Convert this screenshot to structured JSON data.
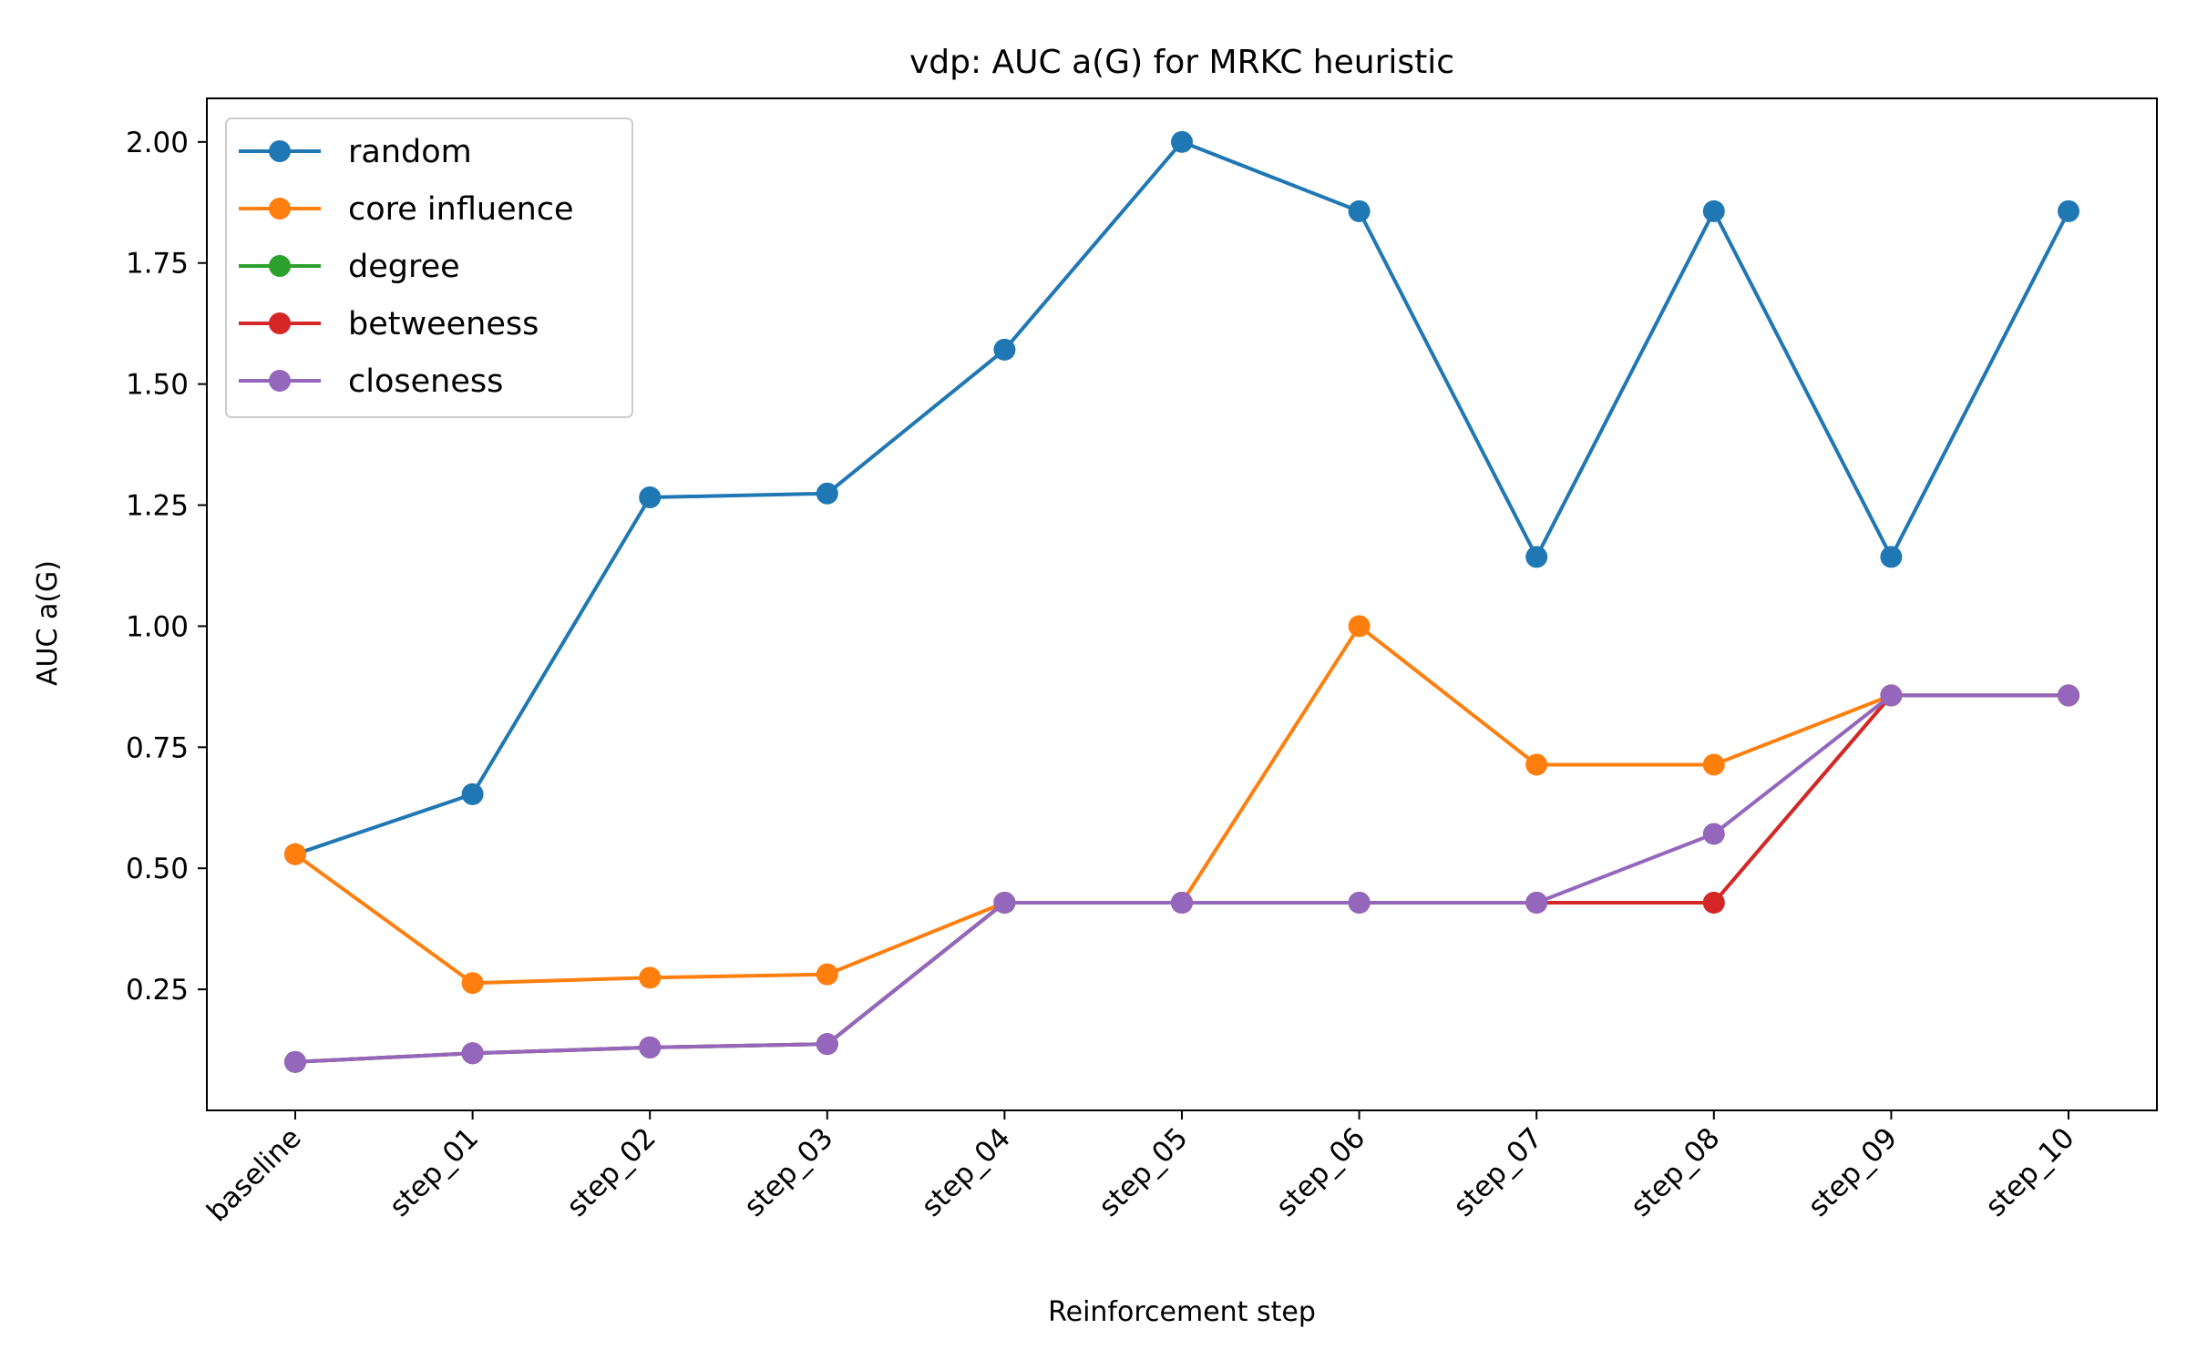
{
  "chart_data": {
    "type": "line",
    "title": "vdp: AUC a(G) for MRKC heuristic",
    "xlabel": "Reinforcement step",
    "ylabel": "AUC a(G)",
    "categories": [
      "baseline",
      "step_01",
      "step_02",
      "step_03",
      "step_04",
      "step_05",
      "step_06",
      "step_07",
      "step_08",
      "step_09",
      "step_10"
    ],
    "ylim": [
      0.0,
      2.09
    ],
    "yticks": [
      "0.25",
      "0.50",
      "0.75",
      "1.00",
      "1.25",
      "1.50",
      "1.75",
      "2.00"
    ],
    "grid": false,
    "legend_position": "top-left",
    "series": [
      {
        "name": "random",
        "color": "#1f77b4",
        "values": [
          0.529,
          0.653,
          1.266,
          1.274,
          1.571,
          2.0,
          1.857,
          1.143,
          1.857,
          1.143,
          1.857
        ]
      },
      {
        "name": "core influence",
        "color": "#ff7f0e",
        "values": [
          0.529,
          0.263,
          0.274,
          0.281,
          0.429,
          0.429,
          1.0,
          0.714,
          0.714,
          0.857,
          0.857
        ]
      },
      {
        "name": "degree",
        "color": "#2ca02c",
        "values": [
          0.1,
          0.118,
          0.13,
          0.137,
          0.429,
          0.429,
          0.429,
          0.429,
          0.429,
          0.857,
          0.857
        ]
      },
      {
        "name": "betweeness",
        "color": "#d62728",
        "values": [
          0.1,
          0.118,
          0.13,
          0.137,
          0.429,
          0.429,
          0.429,
          0.429,
          0.429,
          0.857,
          0.857
        ]
      },
      {
        "name": "closeness",
        "color": "#9467bd",
        "values": [
          0.1,
          0.118,
          0.13,
          0.137,
          0.429,
          0.429,
          0.429,
          0.429,
          0.571,
          0.857,
          0.857
        ]
      }
    ]
  }
}
